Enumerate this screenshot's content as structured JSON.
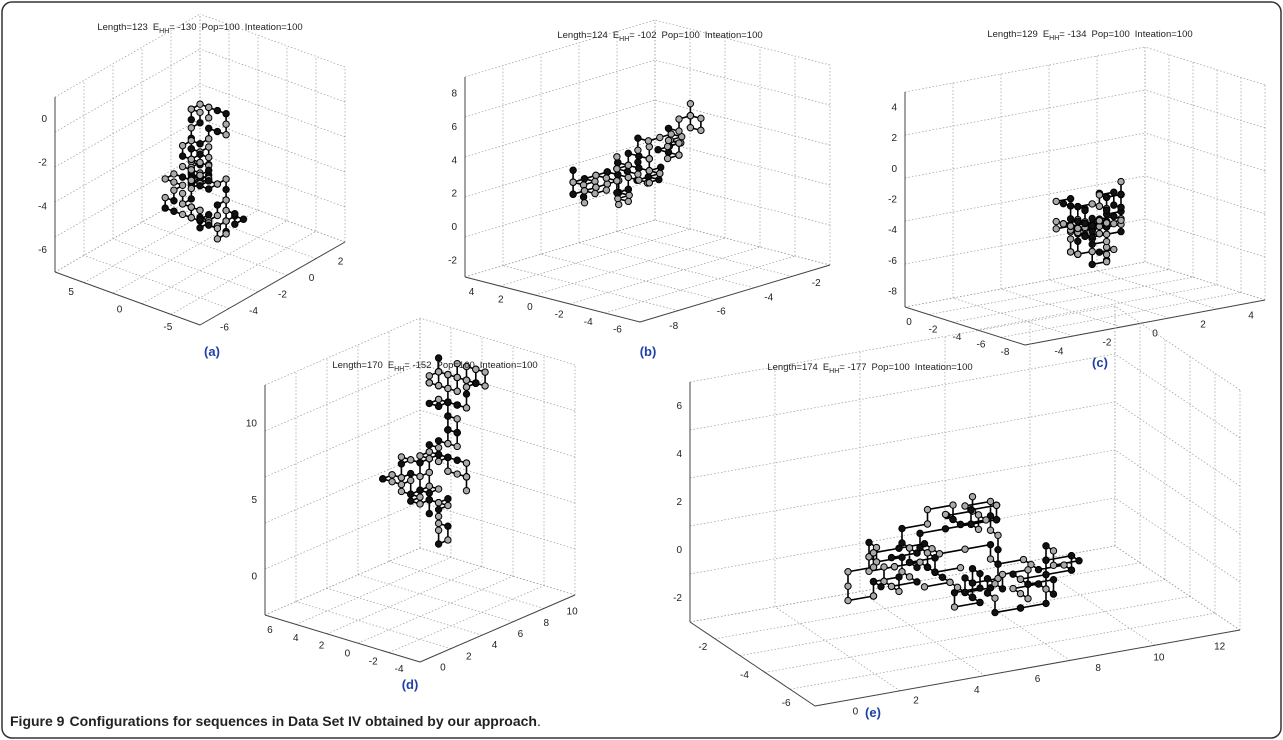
{
  "panels": [
    {
      "title": {
        "length": "Length=123",
        "e": "E",
        "sub": "HH",
        "energy": "= -130",
        "pop": "Pop=100",
        "iter": "Inteation=100"
      },
      "label": "(a)",
      "z_ticks": [
        "0",
        "-2",
        "-4",
        "-6"
      ],
      "left_ticks": [
        "5",
        "0",
        "-5"
      ],
      "right_ticks": [
        "2",
        "0",
        "-2",
        "-4",
        "-6"
      ]
    },
    {
      "title": {
        "length": "Length=124",
        "e": "E",
        "sub": "HH",
        "energy": "= -102",
        "pop": "Pop=100",
        "iter": "Inteation=100"
      },
      "label": "(b)",
      "z_ticks": [
        "8",
        "6",
        "4",
        "2",
        "0",
        "-2"
      ],
      "left_ticks": [
        "4",
        "2",
        "0",
        "-2",
        "-4",
        "-6"
      ],
      "right_ticks": [
        "-2",
        "-4",
        "-6",
        "-8"
      ]
    },
    {
      "title": {
        "length": "Length=129",
        "e": "E",
        "sub": "HH",
        "energy": "= -134",
        "pop": "Pop=100",
        "iter": "Inteation=100"
      },
      "label": "(c)",
      "z_ticks": [
        "4",
        "2",
        "0",
        "-2",
        "-4",
        "-6",
        "-8"
      ],
      "left_ticks": [
        "0",
        "-2",
        "-4",
        "-6",
        "-8"
      ],
      "right_ticks": [
        "4",
        "2",
        "0",
        "-2",
        "-4"
      ]
    },
    {
      "title": {
        "length": "Length=170",
        "e": "E",
        "sub": "HH",
        "energy": "= -152",
        "pop": "Pop=100",
        "iter": "Inteation=100"
      },
      "label": "(d)",
      "z_ticks": [
        "10",
        "5",
        "0"
      ],
      "left_ticks": [
        "6",
        "4",
        "2",
        "0",
        "-2",
        "-4"
      ],
      "right_ticks": [
        "10",
        "8",
        "6",
        "4",
        "2",
        "0"
      ]
    },
    {
      "title": {
        "length": "Length=174",
        "e": "E",
        "sub": "HH",
        "energy": "= -177",
        "pop": "Pop=100",
        "iter": "Inteation=100"
      },
      "label": "(e)",
      "z_ticks": [
        "6",
        "4",
        "2",
        "0",
        "-2"
      ],
      "left_ticks": [
        "-2",
        "-4",
        "-6"
      ],
      "right_ticks": [
        "12",
        "10",
        "8",
        "6",
        "4",
        "2",
        "0"
      ]
    }
  ],
  "caption": {
    "label": "Figure 9",
    "text": "Configurations for sequences in Data Set IV obtained by our approach"
  }
}
